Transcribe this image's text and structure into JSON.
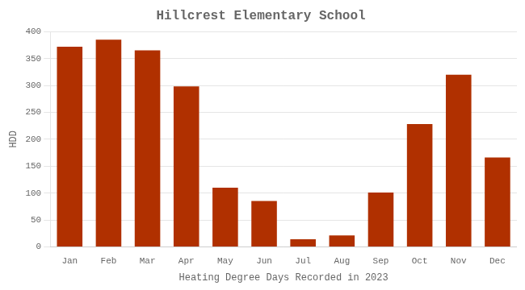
{
  "chart_data": {
    "type": "bar",
    "title": "Hillcrest Elementary School",
    "xlabel": "Heating Degree Days Recorded in 2023",
    "ylabel": "HDD",
    "categories": [
      "Jan",
      "Feb",
      "Mar",
      "Apr",
      "May",
      "Jun",
      "Jul",
      "Aug",
      "Sep",
      "Oct",
      "Nov",
      "Dec"
    ],
    "values": [
      372,
      385,
      365,
      298,
      110,
      85,
      14,
      21,
      101,
      228,
      320,
      166
    ],
    "color": "#b03000",
    "ylim": [
      0,
      400
    ],
    "yticks": [
      0,
      50,
      100,
      150,
      200,
      250,
      300,
      350,
      400
    ],
    "grid": true
  }
}
